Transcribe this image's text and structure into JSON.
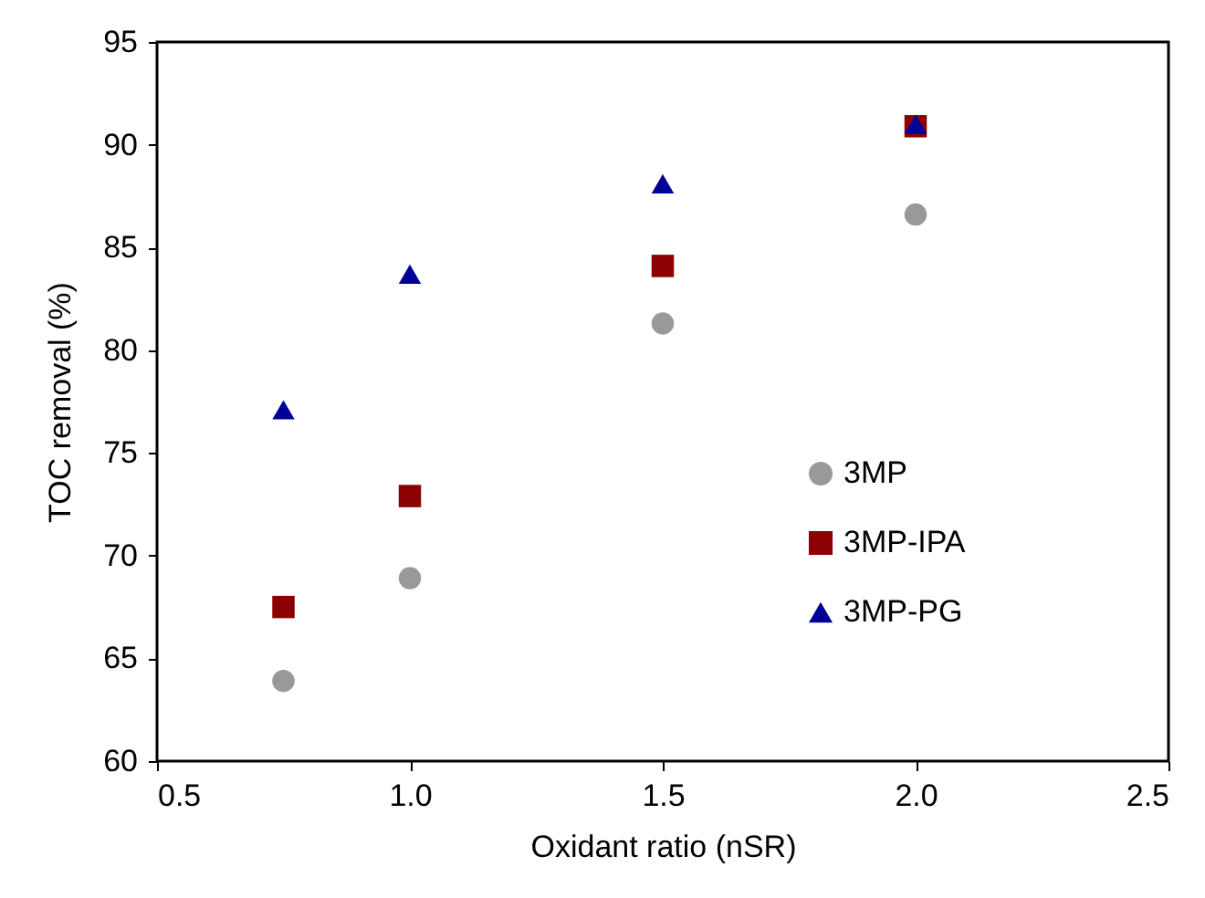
{
  "chart_data": {
    "type": "scatter",
    "xlabel": "Oxidant ratio (nSR)",
    "ylabel": "TOC removal (%)",
    "x": [
      0.75,
      1.0,
      1.5,
      2.0
    ],
    "series": [
      {
        "name": "3MP",
        "color": "#999999",
        "marker": "circle",
        "values": [
          63.9,
          68.9,
          81.3,
          86.6
        ]
      },
      {
        "name": "3MP-IPA",
        "color": "#8b0000",
        "marker": "square",
        "values": [
          67.5,
          72.9,
          84.1,
          90.9
        ]
      },
      {
        "name": "3MP-PG",
        "color": "#000099",
        "marker": "triangle",
        "values": [
          77.1,
          83.7,
          88.1,
          91.0
        ]
      }
    ],
    "xlim": [
      0.5,
      2.5
    ],
    "xticks": [
      0.5,
      {
        "value": 1,
        "label": "1.0"
      },
      1.5,
      {
        "value": 2,
        "label": "2.0"
      },
      2.5
    ],
    "ylim": [
      60,
      95
    ],
    "yticks": [
      60,
      65,
      70,
      75,
      80,
      85,
      90,
      95
    ],
    "grid": false,
    "legend": "right"
  }
}
